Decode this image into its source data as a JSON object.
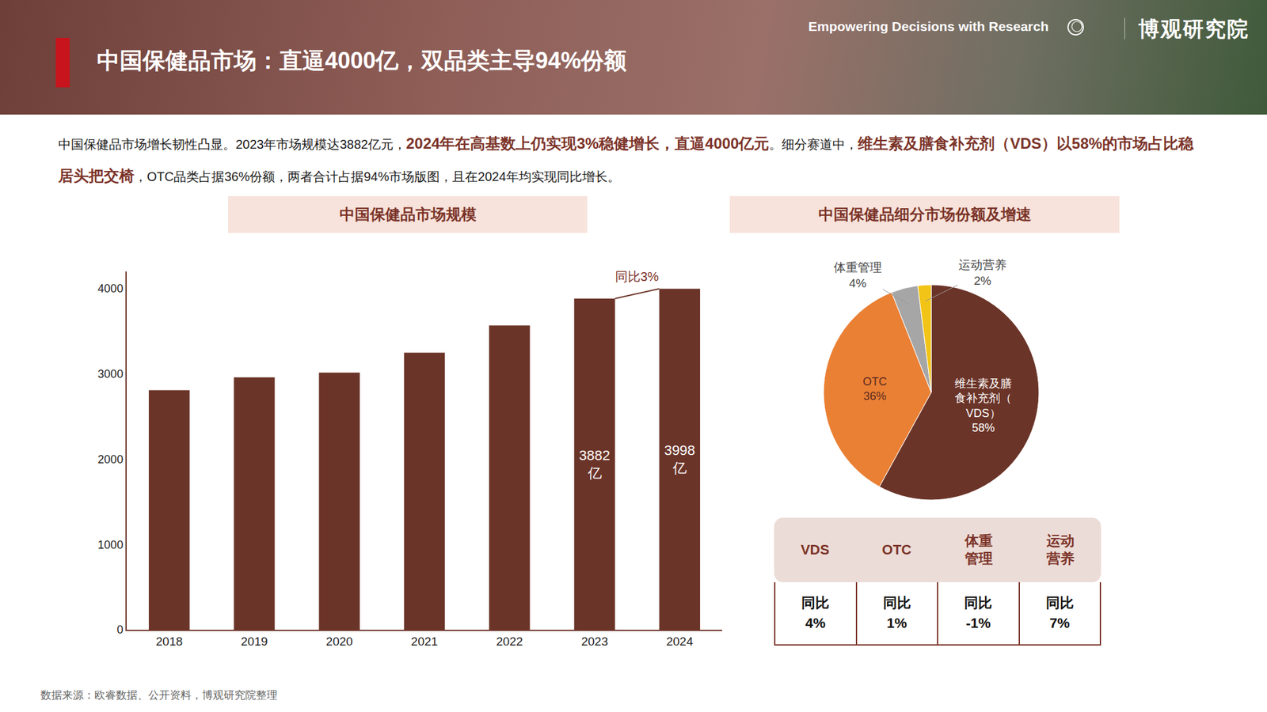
{
  "header": {
    "title": "中国保健品市场：直逼4000亿，双品类主导94%份额",
    "tagline": "Empowering Decisions with Research",
    "brand": "博观研究院"
  },
  "intro": [
    {
      "text": "中国保健品市场增长韧性凸显。2023年市场规模达3882亿元，"
    },
    {
      "text": "2024年在高基数上仍实现3%稳健增长，直逼4000亿元",
      "highlight": true
    },
    {
      "text": "。细分赛道中，"
    },
    {
      "text": "维生素及膳食补充剂（VDS）以58%的市场占比稳居头把交椅",
      "highlight": true
    },
    {
      "text": "，OTC品类占据36%份额，两者合计占据94%市场版图，且在2024年均实现同比增长。"
    }
  ],
  "chart_data": [
    {
      "type": "bar",
      "title": "中国保健品市场规模",
      "categories": [
        "2018",
        "2019",
        "2020",
        "2021",
        "2022",
        "2023",
        "2024"
      ],
      "values": [
        2808,
        2958,
        3014,
        3249,
        3568,
        3882,
        3998
      ],
      "value_labels": [
        null,
        null,
        null,
        null,
        null,
        "3882亿",
        "3998亿"
      ],
      "data_labels": true,
      "color": "#6b3428",
      "grid": false,
      "ylim": [
        0,
        4200
      ],
      "yticks": [
        0,
        1000,
        2000,
        3000,
        4000
      ],
      "annotations": [
        {
          "text": "同比3%",
          "from": "2023",
          "to": "2024"
        }
      ]
    },
    {
      "type": "pie",
      "title": "中国保健品细分市场份额及增速",
      "categories": [
        "维生素及膳食补充剂（VDS）",
        "OTC",
        "体重管理",
        "运动营养"
      ],
      "values": [
        58,
        36,
        4,
        2
      ],
      "value_labels": [
        "58%",
        "36%",
        "4%",
        "2%"
      ],
      "data_labels": true,
      "colors": [
        "#6b3428",
        "#ea8034",
        "#a6a6a6",
        "#f2c417"
      ]
    }
  ],
  "table": {
    "header": [
      "VDS",
      "OTC",
      "体重管理",
      "运动营养"
    ],
    "rows": [
      [
        [
          "同比",
          "4%"
        ],
        [
          "同比",
          "1%"
        ],
        [
          "同比",
          "-1%"
        ],
        [
          "同比",
          "7%"
        ]
      ]
    ]
  },
  "source": "数据来源：欧睿数据、公开资料，博观研究院整理"
}
